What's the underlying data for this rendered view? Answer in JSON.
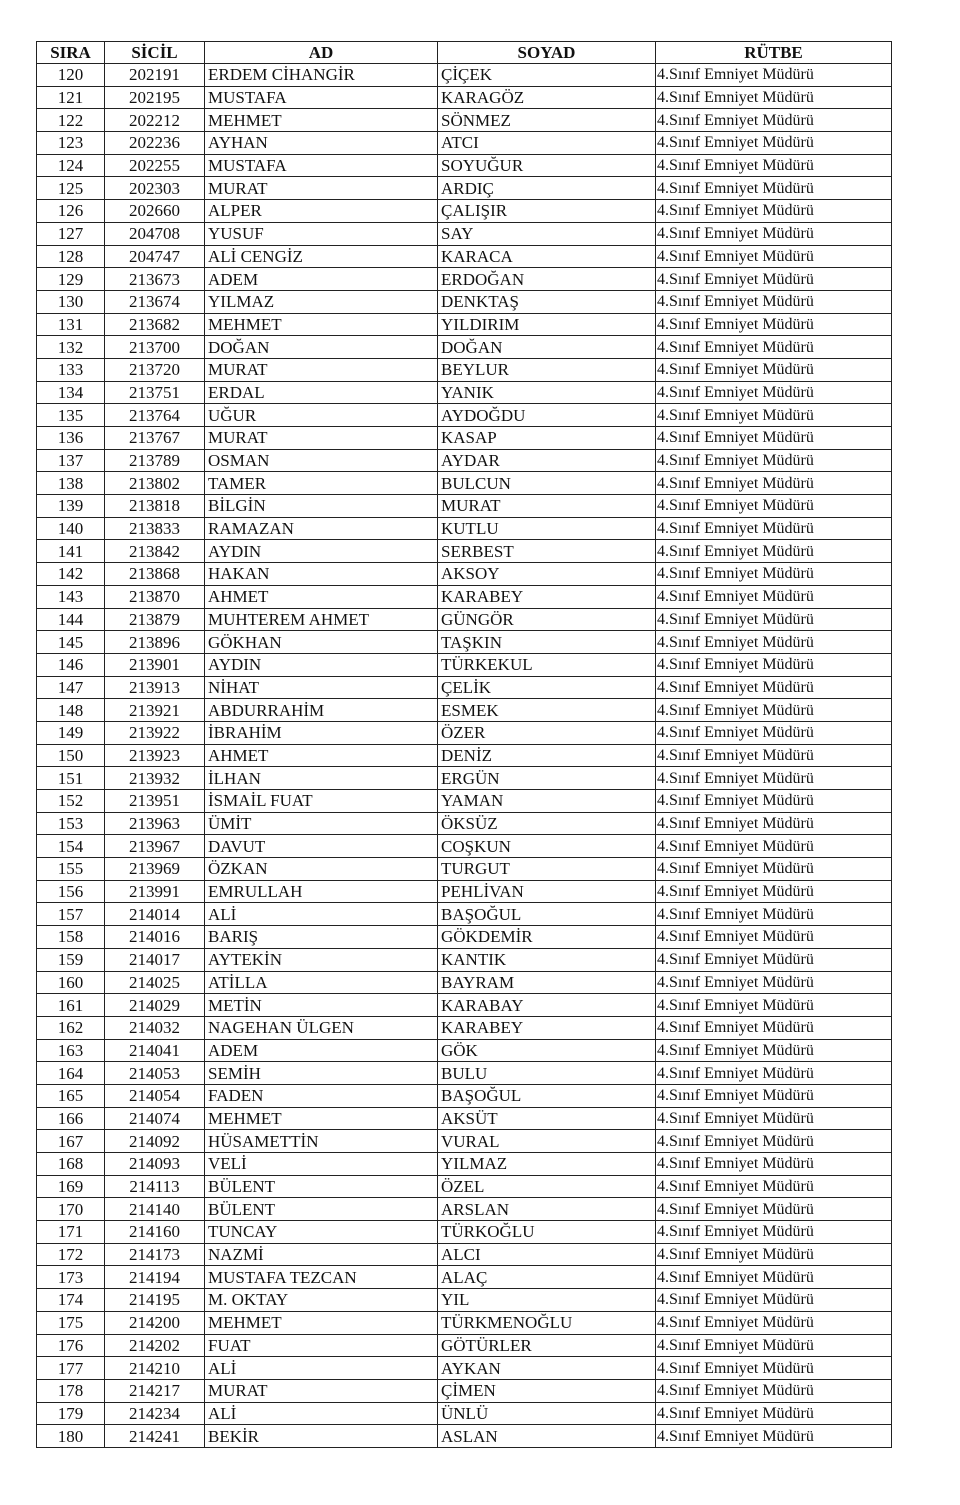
{
  "headers": [
    "SIRA",
    "SİCİL",
    "AD",
    "SOYAD",
    "RÜTBE"
  ],
  "rows": [
    [
      "120",
      "202191",
      "ERDEM CİHANGİR",
      "ÇİÇEK",
      "4.Sınıf Emniyet Müdürü"
    ],
    [
      "121",
      "202195",
      "MUSTAFA",
      "KARAGÖZ",
      "4.Sınıf Emniyet Müdürü"
    ],
    [
      "122",
      "202212",
      "MEHMET",
      "SÖNMEZ",
      "4.Sınıf Emniyet Müdürü"
    ],
    [
      "123",
      "202236",
      "AYHAN",
      "ATCI",
      "4.Sınıf Emniyet Müdürü"
    ],
    [
      "124",
      "202255",
      "MUSTAFA",
      "SOYUĞUR",
      "4.Sınıf Emniyet Müdürü"
    ],
    [
      "125",
      "202303",
      "MURAT",
      "ARDIÇ",
      "4.Sınıf Emniyet Müdürü"
    ],
    [
      "126",
      "202660",
      "ALPER",
      "ÇALIŞIR",
      "4.Sınıf Emniyet Müdürü"
    ],
    [
      "127",
      "204708",
      "YUSUF",
      "SAY",
      "4.Sınıf Emniyet Müdürü"
    ],
    [
      "128",
      "204747",
      "ALİ CENGİZ",
      "KARACA",
      "4.Sınıf Emniyet Müdürü"
    ],
    [
      "129",
      "213673",
      "ADEM",
      "ERDOĞAN",
      "4.Sınıf Emniyet Müdürü"
    ],
    [
      "130",
      "213674",
      "YILMAZ",
      "DENKTAŞ",
      "4.Sınıf Emniyet Müdürü"
    ],
    [
      "131",
      "213682",
      "MEHMET",
      "YILDIRIM",
      "4.Sınıf Emniyet Müdürü"
    ],
    [
      "132",
      "213700",
      "DOĞAN",
      "DOĞAN",
      "4.Sınıf Emniyet Müdürü"
    ],
    [
      "133",
      "213720",
      "MURAT",
      "BEYLUR",
      "4.Sınıf Emniyet Müdürü"
    ],
    [
      "134",
      "213751",
      "ERDAL",
      "YANIK",
      "4.Sınıf Emniyet Müdürü"
    ],
    [
      "135",
      "213764",
      "UĞUR",
      "AYDOĞDU",
      "4.Sınıf Emniyet Müdürü"
    ],
    [
      "136",
      "213767",
      "MURAT",
      "KASAP",
      "4.Sınıf Emniyet Müdürü"
    ],
    [
      "137",
      "213789",
      "OSMAN",
      "AYDAR",
      "4.Sınıf Emniyet Müdürü"
    ],
    [
      "138",
      "213802",
      "TAMER",
      "BULCUN",
      "4.Sınıf Emniyet Müdürü"
    ],
    [
      "139",
      "213818",
      "BİLGİN",
      "MURAT",
      "4.Sınıf Emniyet Müdürü"
    ],
    [
      "140",
      "213833",
      "RAMAZAN",
      "KUTLU",
      "4.Sınıf Emniyet Müdürü"
    ],
    [
      "141",
      "213842",
      "AYDIN",
      "SERBEST",
      "4.Sınıf Emniyet Müdürü"
    ],
    [
      "142",
      "213868",
      "HAKAN",
      "AKSOY",
      "4.Sınıf Emniyet Müdürü"
    ],
    [
      "143",
      "213870",
      "AHMET",
      "KARABEY",
      "4.Sınıf Emniyet Müdürü"
    ],
    [
      "144",
      "213879",
      "MUHTEREM AHMET",
      "GÜNGÖR",
      "4.Sınıf Emniyet Müdürü"
    ],
    [
      "145",
      "213896",
      "GÖKHAN",
      "TAŞKIN",
      "4.Sınıf Emniyet Müdürü"
    ],
    [
      "146",
      "213901",
      "AYDIN",
      "TÜRKEKUL",
      "4.Sınıf Emniyet Müdürü"
    ],
    [
      "147",
      "213913",
      "NİHAT",
      "ÇELİK",
      "4.Sınıf Emniyet Müdürü"
    ],
    [
      "148",
      "213921",
      "ABDURRAHİM",
      "ESMEK",
      "4.Sınıf Emniyet Müdürü"
    ],
    [
      "149",
      "213922",
      "İBRAHİM",
      "ÖZER",
      "4.Sınıf Emniyet Müdürü"
    ],
    [
      "150",
      "213923",
      "AHMET",
      "DENİZ",
      "4.Sınıf Emniyet Müdürü"
    ],
    [
      "151",
      "213932",
      "İLHAN",
      "ERGÜN",
      "4.Sınıf Emniyet Müdürü"
    ],
    [
      "152",
      "213951",
      "İSMAİL FUAT",
      "YAMAN",
      "4.Sınıf Emniyet Müdürü"
    ],
    [
      "153",
      "213963",
      "ÜMİT",
      "ÖKSÜZ",
      "4.Sınıf Emniyet Müdürü"
    ],
    [
      "154",
      "213967",
      "DAVUT",
      "COŞKUN",
      "4.Sınıf Emniyet Müdürü"
    ],
    [
      "155",
      "213969",
      "ÖZKAN",
      "TURGUT",
      "4.Sınıf Emniyet Müdürü"
    ],
    [
      "156",
      "213991",
      "EMRULLAH",
      "PEHLİVAN",
      "4.Sınıf Emniyet Müdürü"
    ],
    [
      "157",
      "214014",
      "ALİ",
      "BAŞOĞUL",
      "4.Sınıf Emniyet Müdürü"
    ],
    [
      "158",
      "214016",
      "BARIŞ",
      "GÖKDEMİR",
      "4.Sınıf Emniyet Müdürü"
    ],
    [
      "159",
      "214017",
      "AYTEKİN",
      "KANTIK",
      "4.Sınıf Emniyet Müdürü"
    ],
    [
      "160",
      "214025",
      "ATİLLA",
      "BAYRAM",
      "4.Sınıf Emniyet Müdürü"
    ],
    [
      "161",
      "214029",
      "METİN",
      "KARABAY",
      "4.Sınıf Emniyet Müdürü"
    ],
    [
      "162",
      "214032",
      "NAGEHAN ÜLGEN",
      "KARABEY",
      "4.Sınıf Emniyet Müdürü"
    ],
    [
      "163",
      "214041",
      "ADEM",
      "GÖK",
      "4.Sınıf Emniyet Müdürü"
    ],
    [
      "164",
      "214053",
      "SEMİH",
      "BULU",
      "4.Sınıf Emniyet Müdürü"
    ],
    [
      "165",
      "214054",
      "FADEN",
      "BAŞOĞUL",
      "4.Sınıf Emniyet Müdürü"
    ],
    [
      "166",
      "214074",
      "MEHMET",
      "AKSÜT",
      "4.Sınıf Emniyet Müdürü"
    ],
    [
      "167",
      "214092",
      "HÜSAMETTİN",
      "VURAL",
      "4.Sınıf Emniyet Müdürü"
    ],
    [
      "168",
      "214093",
      "VELİ",
      "YILMAZ",
      "4.Sınıf Emniyet Müdürü"
    ],
    [
      "169",
      "214113",
      "BÜLENT",
      "ÖZEL",
      "4.Sınıf Emniyet Müdürü"
    ],
    [
      "170",
      "214140",
      "BÜLENT",
      "ARSLAN",
      "4.Sınıf Emniyet Müdürü"
    ],
    [
      "171",
      "214160",
      "TUNCAY",
      "TÜRKOĞLU",
      "4.Sınıf Emniyet Müdürü"
    ],
    [
      "172",
      "214173",
      "NAZMİ",
      "ALCI",
      "4.Sınıf Emniyet Müdürü"
    ],
    [
      "173",
      "214194",
      "MUSTAFA TEZCAN",
      "ALAÇ",
      "4.Sınıf Emniyet Müdürü"
    ],
    [
      "174",
      "214195",
      "M. OKTAY",
      "YIL",
      "4.Sınıf Emniyet Müdürü"
    ],
    [
      "175",
      "214200",
      "MEHMET",
      "TÜRKMENOĞLU",
      "4.Sınıf Emniyet Müdürü"
    ],
    [
      "176",
      "214202",
      "FUAT",
      "GÖTÜRLER",
      "4.Sınıf Emniyet Müdürü"
    ],
    [
      "177",
      "214210",
      "ALİ",
      "AYKAN",
      "4.Sınıf Emniyet Müdürü"
    ],
    [
      "178",
      "214217",
      "MURAT",
      "ÇİMEN",
      "4.Sınıf Emniyet Müdürü"
    ],
    [
      "179",
      "214234",
      "ALİ",
      "ÜNLÜ",
      "4.Sınıf Emniyet Müdürü"
    ],
    [
      "180",
      "214241",
      "BEKİR",
      "ASLAN",
      "4.Sınıf Emniyet Müdürü"
    ]
  ]
}
